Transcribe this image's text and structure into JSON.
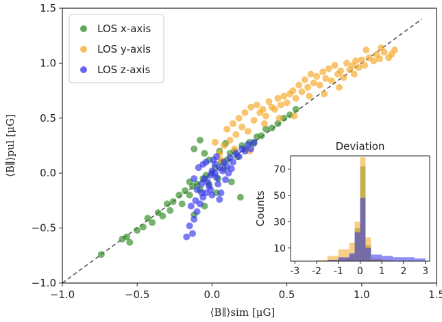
{
  "chart_data": [
    {
      "type": "scatter",
      "title": "",
      "xlabel": "⟨B∥⟩sim [μG]",
      "ylabel": "⟨B∥⟩pul [μG]",
      "xlim": [
        -1.0,
        1.5
      ],
      "ylim": [
        -1.0,
        1.5
      ],
      "xticks": [
        "−1.0",
        "−0.5",
        "0.0",
        "0.5",
        "1.0",
        "1.5"
      ],
      "yticks": [
        "−1.0",
        "−0.5",
        "0.0",
        "0.5",
        "1.0",
        "1.5"
      ],
      "xtick_values": [
        -1.0,
        -0.5,
        0.0,
        0.5,
        1.0,
        1.5
      ],
      "ytick_values": [
        -1.0,
        -0.5,
        0.0,
        0.5,
        1.0,
        1.5
      ],
      "grid": false,
      "legend_position": "top-left",
      "reference_line": {
        "style": "dashed",
        "color": "#555555",
        "from": [
          -1.0,
          -1.0
        ],
        "to": [
          1.4,
          1.4
        ]
      },
      "series": [
        {
          "name": "LOS x-axis",
          "color": "#2e8b22",
          "points": [
            [
              -0.74,
              -0.74
            ],
            [
              -0.6,
              -0.6
            ],
            [
              -0.57,
              -0.58
            ],
            [
              -0.55,
              -0.63
            ],
            [
              -0.5,
              -0.52
            ],
            [
              -0.46,
              -0.49
            ],
            [
              -0.43,
              -0.41
            ],
            [
              -0.4,
              -0.45
            ],
            [
              -0.36,
              -0.36
            ],
            [
              -0.33,
              -0.39
            ],
            [
              -0.3,
              -0.28
            ],
            [
              -0.28,
              -0.34
            ],
            [
              -0.26,
              -0.26
            ],
            [
              -0.22,
              -0.2
            ],
            [
              -0.2,
              -0.28
            ],
            [
              -0.18,
              -0.16
            ],
            [
              -0.15,
              -0.2
            ],
            [
              -0.13,
              -0.12
            ],
            [
              -0.12,
              -0.38
            ],
            [
              -0.1,
              -0.1
            ],
            [
              -0.08,
              -0.15
            ],
            [
              -0.06,
              -0.05
            ],
            [
              -0.05,
              -0.3
            ],
            [
              -0.04,
              -0.02
            ],
            [
              -0.02,
              -0.1
            ],
            [
              0.0,
              0.0
            ],
            [
              0.02,
              0.05
            ],
            [
              0.04,
              -0.05
            ],
            [
              0.06,
              0.1
            ],
            [
              0.08,
              0.04
            ],
            [
              0.1,
              0.12
            ],
            [
              0.12,
              0.18
            ],
            [
              0.13,
              -0.08
            ],
            [
              0.15,
              0.2
            ],
            [
              0.17,
              0.15
            ],
            [
              0.19,
              -0.22
            ],
            [
              0.2,
              0.25
            ],
            [
              0.22,
              0.22
            ],
            [
              0.25,
              0.28
            ],
            [
              0.28,
              0.27
            ],
            [
              0.3,
              0.33
            ],
            [
              0.33,
              0.34
            ],
            [
              0.36,
              0.4
            ],
            [
              0.4,
              0.41
            ],
            [
              0.44,
              0.45
            ],
            [
              0.48,
              0.5
            ],
            [
              0.52,
              0.53
            ],
            [
              0.56,
              0.58
            ],
            [
              -0.08,
              0.3
            ],
            [
              -0.12,
              0.22
            ],
            [
              -0.15,
              -0.08
            ],
            [
              -0.05,
              0.18
            ],
            [
              0.03,
              -0.18
            ],
            [
              0.09,
              0.27
            ],
            [
              -0.02,
              0.12
            ],
            [
              0.05,
              0.2
            ]
          ]
        },
        {
          "name": "LOS y-axis",
          "color": "#f5a623",
          "points": [
            [
              0.05,
              0.18
            ],
            [
              0.08,
              0.25
            ],
            [
              0.1,
              0.4
            ],
            [
              0.12,
              0.3
            ],
            [
              0.14,
              0.45
            ],
            [
              0.16,
              0.35
            ],
            [
              0.18,
              0.5
            ],
            [
              0.2,
              0.42
            ],
            [
              0.22,
              0.55
            ],
            [
              0.24,
              0.38
            ],
            [
              0.26,
              0.6
            ],
            [
              0.28,
              0.48
            ],
            [
              0.3,
              0.62
            ],
            [
              0.32,
              0.55
            ],
            [
              0.34,
              0.58
            ],
            [
              0.36,
              0.52
            ],
            [
              0.38,
              0.65
            ],
            [
              0.4,
              0.6
            ],
            [
              0.42,
              0.58
            ],
            [
              0.44,
              0.68
            ],
            [
              0.46,
              0.62
            ],
            [
              0.48,
              0.7
            ],
            [
              0.5,
              0.64
            ],
            [
              0.52,
              0.72
            ],
            [
              0.54,
              0.75
            ],
            [
              0.56,
              0.68
            ],
            [
              0.58,
              0.8
            ],
            [
              0.6,
              0.74
            ],
            [
              0.62,
              0.85
            ],
            [
              0.64,
              0.78
            ],
            [
              0.66,
              0.9
            ],
            [
              0.68,
              0.82
            ],
            [
              0.7,
              0.88
            ],
            [
              0.72,
              0.8
            ],
            [
              0.74,
              0.92
            ],
            [
              0.76,
              0.86
            ],
            [
              0.78,
              0.95
            ],
            [
              0.8,
              0.84
            ],
            [
              0.82,
              0.98
            ],
            [
              0.84,
              0.9
            ],
            [
              0.86,
              0.93
            ],
            [
              0.88,
              0.87
            ],
            [
              0.9,
              1.0
            ],
            [
              0.92,
              0.94
            ],
            [
              0.94,
              0.98
            ],
            [
              0.96,
              1.02
            ],
            [
              0.98,
              0.96
            ],
            [
              1.0,
              1.03
            ],
            [
              1.02,
              0.98
            ],
            [
              1.05,
              1.05
            ],
            [
              1.08,
              1.02
            ],
            [
              1.1,
              1.08
            ],
            [
              1.12,
              1.04
            ],
            [
              1.15,
              1.1
            ],
            [
              1.18,
              1.05
            ],
            [
              1.2,
              1.08
            ],
            [
              1.22,
              1.12
            ],
            [
              0.02,
              0.28
            ],
            [
              0.06,
              0.12
            ],
            [
              0.15,
              0.22
            ],
            [
              0.25,
              0.2
            ],
            [
              0.35,
              0.45
            ],
            [
              0.45,
              0.5
            ],
            [
              0.55,
              0.52
            ],
            [
              0.65,
              0.7
            ],
            [
              0.75,
              0.72
            ],
            [
              0.85,
              0.78
            ],
            [
              0.95,
              0.9
            ],
            [
              1.03,
              1.12
            ],
            [
              1.13,
              1.14
            ]
          ]
        },
        {
          "name": "LOS z-axis",
          "color": "#3333ee",
          "points": [
            [
              -0.17,
              -0.58
            ],
            [
              -0.15,
              -0.48
            ],
            [
              -0.13,
              -0.55
            ],
            [
              -0.12,
              -0.42
            ],
            [
              -0.1,
              -0.35
            ],
            [
              -0.14,
              -0.3
            ],
            [
              -0.11,
              -0.25
            ],
            [
              -0.08,
              -0.28
            ],
            [
              -0.06,
              -0.22
            ],
            [
              -0.04,
              -0.18
            ],
            [
              -0.1,
              -0.15
            ],
            [
              -0.07,
              -0.1
            ],
            [
              -0.05,
              -0.05
            ],
            [
              -0.03,
              -0.08
            ],
            [
              -0.01,
              -0.02
            ],
            [
              0.0,
              0.02
            ],
            [
              0.02,
              0.0
            ],
            [
              0.03,
              -0.04
            ],
            [
              0.05,
              0.05
            ],
            [
              0.07,
              0.02
            ],
            [
              0.08,
              0.1
            ],
            [
              0.1,
              0.06
            ],
            [
              0.12,
              0.14
            ],
            [
              0.14,
              0.1
            ],
            [
              0.16,
              0.18
            ],
            [
              0.18,
              0.15
            ],
            [
              0.2,
              0.22
            ],
            [
              0.22,
              0.2
            ],
            [
              0.24,
              0.26
            ],
            [
              0.26,
              0.22
            ],
            [
              0.28,
              0.28
            ],
            [
              -0.02,
              -0.12
            ],
            [
              0.04,
              -0.1
            ],
            [
              0.06,
              -0.18
            ],
            [
              -0.09,
              0.05
            ],
            [
              -0.06,
              0.08
            ],
            [
              0.01,
              0.12
            ],
            [
              0.09,
              -0.06
            ],
            [
              -0.12,
              -0.05
            ],
            [
              0.0,
              -0.2
            ],
            [
              0.03,
              0.15
            ],
            [
              -0.04,
              0.1
            ],
            [
              0.11,
              0.0
            ],
            [
              -0.01,
              -0.15
            ],
            [
              0.05,
              -0.24
            ],
            [
              0.13,
              0.04
            ],
            [
              -0.07,
              -0.18
            ],
            [
              0.02,
              0.08
            ]
          ]
        }
      ]
    },
    {
      "type": "bar",
      "title": "Deviation",
      "xlabel": "",
      "ylabel": "Counts",
      "xlim": [
        -3.2,
        3.2
      ],
      "ylim": [
        0,
        80
      ],
      "xticks": [
        "-3",
        "-2",
        "-1",
        "0",
        "1",
        "2",
        "3"
      ],
      "xtick_values": [
        -3,
        -2,
        -1,
        0,
        1,
        2,
        3
      ],
      "yticks": [
        "10",
        "30",
        "50",
        "70"
      ],
      "ytick_values": [
        10,
        30,
        50,
        70
      ],
      "bin_edges": [
        -3.0,
        -2.5,
        -2.0,
        -1.5,
        -1.0,
        -0.5,
        -0.25,
        0.0,
        0.25,
        0.5,
        1.0,
        1.5,
        2.0,
        2.5,
        3.0
      ],
      "series": [
        {
          "name": "LOS x-axis",
          "color": "#2e8b22",
          "values": [
            0,
            0,
            0,
            1,
            2,
            5,
            25,
            72,
            12,
            1,
            0,
            0,
            0,
            0
          ]
        },
        {
          "name": "LOS y-axis",
          "color": "#f5a623",
          "values": [
            0,
            0,
            1,
            4,
            9,
            14,
            30,
            79,
            18,
            2,
            1,
            0,
            0,
            0
          ]
        },
        {
          "name": "LOS z-axis",
          "color": "#3333ee",
          "values": [
            0,
            0,
            0,
            1,
            3,
            6,
            22,
            48,
            10,
            5,
            4,
            3,
            3,
            2
          ]
        }
      ]
    }
  ]
}
